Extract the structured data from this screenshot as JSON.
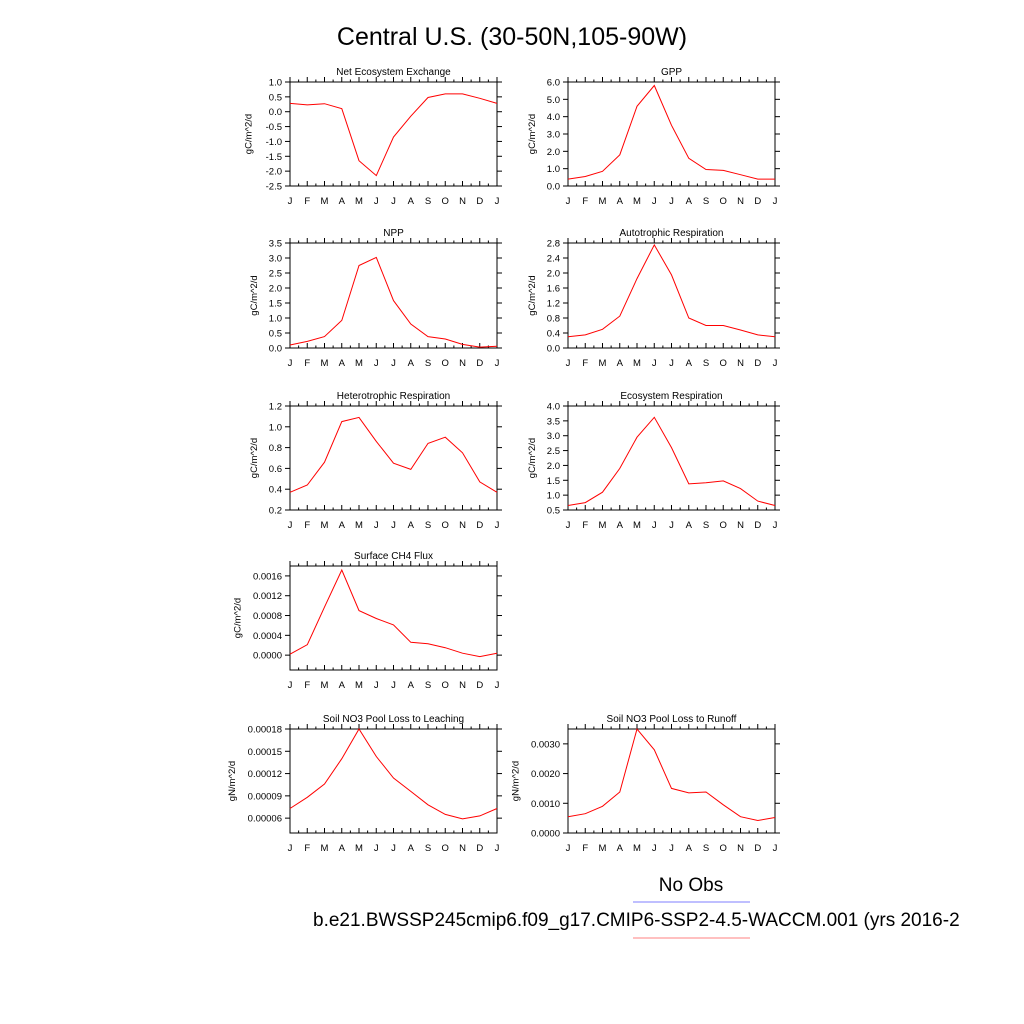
{
  "figure": {
    "title": "Central U.S. (30-50N,105-90W)",
    "legend_label": "No Obs",
    "caption": "b.e21.BWSSP245cmip6.f09_g17.CMIP6-SSP2-4.5-WACCM.001 (yrs 2016-2",
    "colors": {
      "model_line": "#ff0000",
      "obs_line": "#7f7fff",
      "axes": "#000000"
    }
  },
  "chart_data": [
    {
      "type": "line",
      "title": "Net Ecosystem Exchange",
      "ylabel": "gC/m^2/d",
      "categories": [
        "J",
        "F",
        "M",
        "A",
        "M",
        "J",
        "J",
        "A",
        "S",
        "O",
        "N",
        "D",
        "J"
      ],
      "yticks": [
        "1.0",
        "0.5",
        "0.0",
        "-0.5",
        "-1.0",
        "-1.5",
        "-2.0",
        "-2.5"
      ],
      "ylim": [
        -2.5,
        1.0
      ],
      "series": [
        {
          "values": [
            0.28,
            0.23,
            0.27,
            0.1,
            -1.65,
            -2.15,
            -0.85,
            -0.15,
            0.48,
            0.6,
            0.6,
            0.45,
            0.28
          ]
        }
      ]
    },
    {
      "type": "line",
      "title": "GPP",
      "ylabel": "gC/m^2/d",
      "categories": [
        "J",
        "F",
        "M",
        "A",
        "M",
        "J",
        "J",
        "A",
        "S",
        "O",
        "N",
        "D",
        "J"
      ],
      "yticks": [
        "6.0",
        "5.0",
        "4.0",
        "3.0",
        "2.0",
        "1.0",
        "0.0"
      ],
      "ylim": [
        0,
        6.0
      ],
      "series": [
        {
          "values": [
            0.4,
            0.55,
            0.85,
            1.8,
            4.6,
            5.8,
            3.5,
            1.6,
            0.95,
            0.9,
            0.65,
            0.4,
            0.4
          ]
        }
      ]
    },
    {
      "type": "line",
      "title": "NPP",
      "ylabel": "gC/m^2/d",
      "categories": [
        "J",
        "F",
        "M",
        "A",
        "M",
        "J",
        "J",
        "A",
        "S",
        "O",
        "N",
        "D",
        "J"
      ],
      "yticks": [
        "3.5",
        "3.0",
        "2.5",
        "2.0",
        "1.5",
        "1.0",
        "0.5",
        "0.0"
      ],
      "ylim": [
        0,
        3.5
      ],
      "series": [
        {
          "values": [
            0.1,
            0.22,
            0.38,
            0.92,
            2.75,
            3.02,
            1.58,
            0.8,
            0.38,
            0.3,
            0.12,
            0.03,
            0.06
          ]
        }
      ]
    },
    {
      "type": "line",
      "title": "Autotrophic Respiration",
      "ylabel": "gC/m^2/d",
      "categories": [
        "J",
        "F",
        "M",
        "A",
        "M",
        "J",
        "J",
        "A",
        "S",
        "O",
        "N",
        "D",
        "J"
      ],
      "yticks": [
        "2.8",
        "2.4",
        "2.0",
        "1.6",
        "1.2",
        "0.8",
        "0.4",
        "0.0"
      ],
      "ylim": [
        0,
        2.8
      ],
      "series": [
        {
          "values": [
            0.3,
            0.35,
            0.5,
            0.85,
            1.85,
            2.75,
            1.95,
            0.8,
            0.6,
            0.6,
            0.48,
            0.35,
            0.3
          ]
        }
      ]
    },
    {
      "type": "line",
      "title": "Heterotrophic Respiration",
      "ylabel": "gC/m^2/d",
      "categories": [
        "J",
        "F",
        "M",
        "A",
        "M",
        "J",
        "J",
        "A",
        "S",
        "O",
        "N",
        "D",
        "J"
      ],
      "yticks": [
        "1.2",
        "1.0",
        "0.8",
        "0.6",
        "0.4",
        "0.2"
      ],
      "ylim": [
        0.2,
        1.2
      ],
      "series": [
        {
          "values": [
            0.37,
            0.44,
            0.66,
            1.05,
            1.09,
            0.86,
            0.65,
            0.59,
            0.84,
            0.9,
            0.75,
            0.47,
            0.37
          ]
        }
      ]
    },
    {
      "type": "line",
      "title": "Ecosystem Respiration",
      "ylabel": "gC/m^2/d",
      "categories": [
        "J",
        "F",
        "M",
        "A",
        "M",
        "J",
        "J",
        "A",
        "S",
        "O",
        "N",
        "D",
        "J"
      ],
      "yticks": [
        "4.0",
        "3.5",
        "3.0",
        "2.5",
        "2.0",
        "1.5",
        "1.0",
        "0.5"
      ],
      "ylim": [
        0.5,
        4.0
      ],
      "series": [
        {
          "values": [
            0.65,
            0.75,
            1.1,
            1.9,
            2.95,
            3.62,
            2.6,
            1.38,
            1.42,
            1.48,
            1.22,
            0.8,
            0.65
          ]
        }
      ]
    },
    {
      "type": "line",
      "title": "Surface CH4 Flux",
      "ylabel": "gC/m^2/d",
      "categories": [
        "J",
        "F",
        "M",
        "A",
        "M",
        "J",
        "J",
        "A",
        "S",
        "O",
        "N",
        "D",
        "J"
      ],
      "yticks": [
        "0.0016",
        "0.0012",
        "0.0008",
        "0.0004",
        "0.0000"
      ],
      "ylim": [
        -0.0003,
        0.0018
      ],
      "series": [
        {
          "values": [
            2e-05,
            0.00021,
            0.00097,
            0.00172,
            0.0009,
            0.00074,
            0.00061,
            0.00026,
            0.00023,
            0.00015,
            4e-05,
            -3e-05,
            4e-05
          ]
        }
      ]
    },
    {
      "type": "line",
      "title": "Soil NO3 Pool Loss to Leaching",
      "ylabel": "gN/m^2/d",
      "categories": [
        "J",
        "F",
        "M",
        "A",
        "M",
        "J",
        "J",
        "A",
        "S",
        "O",
        "N",
        "D",
        "J"
      ],
      "yticks": [
        "0.00018",
        "0.00015",
        "0.00012",
        "0.00009",
        "0.00006"
      ],
      "ylim": [
        4e-05,
        0.00018
      ],
      "series": [
        {
          "values": [
            7.3e-05,
            8.8e-05,
            0.000106,
            0.00014,
            0.00018,
            0.000143,
            0.000114,
            9.6e-05,
            7.8e-05,
            6.5e-05,
            5.9e-05,
            6.3e-05,
            7.3e-05
          ]
        }
      ]
    },
    {
      "type": "line",
      "title": "Soil NO3 Pool Loss to Runoff",
      "ylabel": "gN/m^2/d",
      "categories": [
        "J",
        "F",
        "M",
        "A",
        "M",
        "J",
        "J",
        "A",
        "S",
        "O",
        "N",
        "D",
        "J"
      ],
      "yticks": [
        "0.0030",
        "0.0020",
        "0.0010",
        "0.0000"
      ],
      "ylim": [
        0,
        0.0035
      ],
      "series": [
        {
          "values": [
            0.00055,
            0.00065,
            0.0009,
            0.00138,
            0.0035,
            0.0028,
            0.0015,
            0.00135,
            0.00138,
            0.00095,
            0.00055,
            0.00042,
            0.00052
          ]
        }
      ]
    }
  ]
}
